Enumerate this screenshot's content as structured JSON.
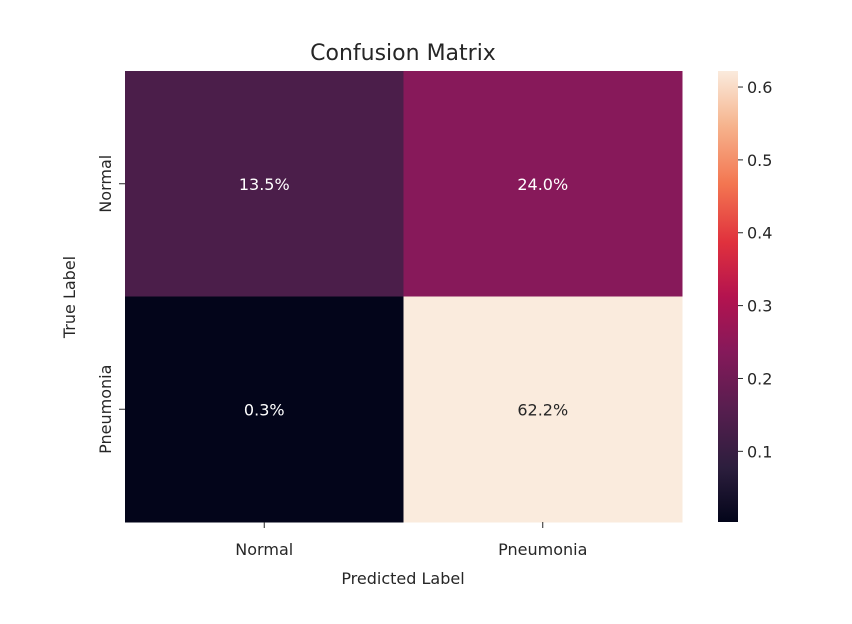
{
  "chart_data": {
    "type": "heatmap",
    "title": "Confusion Matrix",
    "xlabel": "Predicted Label",
    "ylabel": "True Label",
    "x_categories": [
      "Normal",
      "Pneumonia"
    ],
    "y_categories": [
      "Normal",
      "Pneumonia"
    ],
    "values": [
      [
        0.135,
        0.24
      ],
      [
        0.003,
        0.622
      ]
    ],
    "cell_labels": [
      [
        "13.5%",
        "24.0%"
      ],
      [
        "0.3%",
        "62.2%"
      ]
    ],
    "colorbar": {
      "colormap": "rocket",
      "range": [
        0.003,
        0.622
      ],
      "ticks": [
        0.1,
        0.2,
        0.3,
        0.4,
        0.5,
        0.6
      ],
      "tick_labels": [
        "0.1",
        "0.2",
        "0.3",
        "0.4",
        "0.5",
        "0.6"
      ]
    },
    "grid": false
  }
}
